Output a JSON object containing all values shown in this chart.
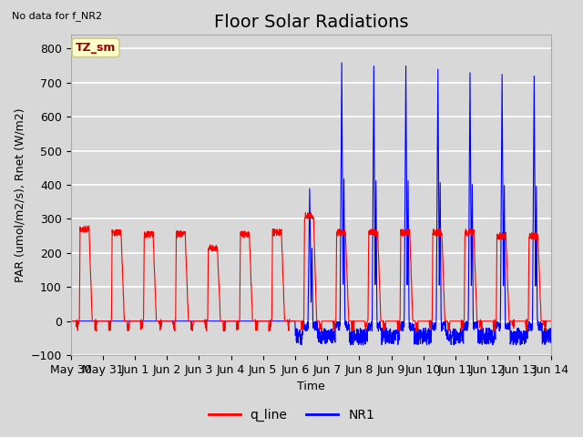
{
  "title": "Floor Solar Radiations",
  "xlabel": "Time",
  "ylabel": "PAR (umol/m2/s), Rnet (W/m2)",
  "ylim": [
    -100,
    840
  ],
  "yticks": [
    -100,
    0,
    100,
    200,
    300,
    400,
    500,
    600,
    700,
    800
  ],
  "background_color": "#d8d8d8",
  "plot_bg_color": "#d8d8d8",
  "no_data_text": "No data for f_NR2",
  "legend_box_label": "TZ_sm",
  "legend_box_color": "#ffffcc",
  "legend_box_edge": "#cccc88",
  "q_line_color": "red",
  "NR1_color": "blue",
  "title_fontsize": 14,
  "label_fontsize": 9,
  "tick_fontsize": 9,
  "grid_color": "white",
  "day_labels": [
    "May 30",
    "May 31",
    "Jun 1",
    "Jun 2",
    "Jun 3",
    "Jun 4",
    "Jun 5",
    "Jun 6",
    "Jun 7",
    "Jun 8",
    "Jun 9",
    "Jun 10",
    "Jun 11",
    "Jun 12",
    "Jun 13",
    "Jun 14"
  ]
}
